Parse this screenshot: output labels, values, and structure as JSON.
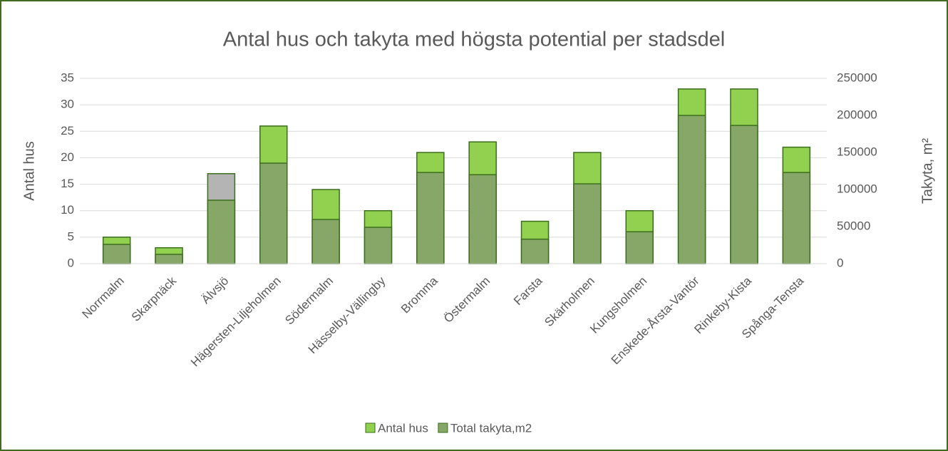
{
  "chart_data": {
    "type": "bar",
    "title": "Antal hus och takyta med högsta potential per stadsdel",
    "y_label": "Antal hus",
    "y2_label": "Takyta, m²",
    "categories": [
      "Norrmalm",
      "Skarpnäck",
      "Älvsjö",
      "Hägersten-Liljeholmen",
      "Södermalm",
      "Hässelby-Vällingby",
      "Bromma",
      "Östermalm",
      "Farsta",
      "Skärholmen",
      "Kungsholmen",
      "Enskede-Årsta-Vantör",
      "Rinkeby-Kista",
      "Spånga-Tensta"
    ],
    "series": [
      {
        "name": "Antal hus",
        "color": "#92d050",
        "point_colors": [
          null,
          null,
          "#b4b4b4",
          null,
          null,
          null,
          null,
          null,
          null,
          null,
          null,
          null,
          null,
          null
        ],
        "values": [
          5,
          3,
          17,
          26,
          14,
          10,
          21,
          23,
          8,
          21,
          10,
          33,
          33,
          22
        ]
      },
      {
        "name": "Total takyta,m2",
        "color": "#86a768",
        "axis": "y2",
        "values": [
          26000,
          12500,
          85600,
          135600,
          59600,
          49000,
          123000,
          120000,
          33000,
          107700,
          43000,
          200000,
          186500,
          123000
        ]
      }
    ],
    "ylim": [
      0,
      35
    ],
    "yticks": [
      0,
      5,
      10,
      15,
      20,
      25,
      30,
      35
    ],
    "y2lim": [
      0,
      250000
    ],
    "y2ticks": [
      0,
      50000,
      100000,
      150000,
      200000,
      250000
    ],
    "grid": true,
    "legend": "bottom"
  }
}
